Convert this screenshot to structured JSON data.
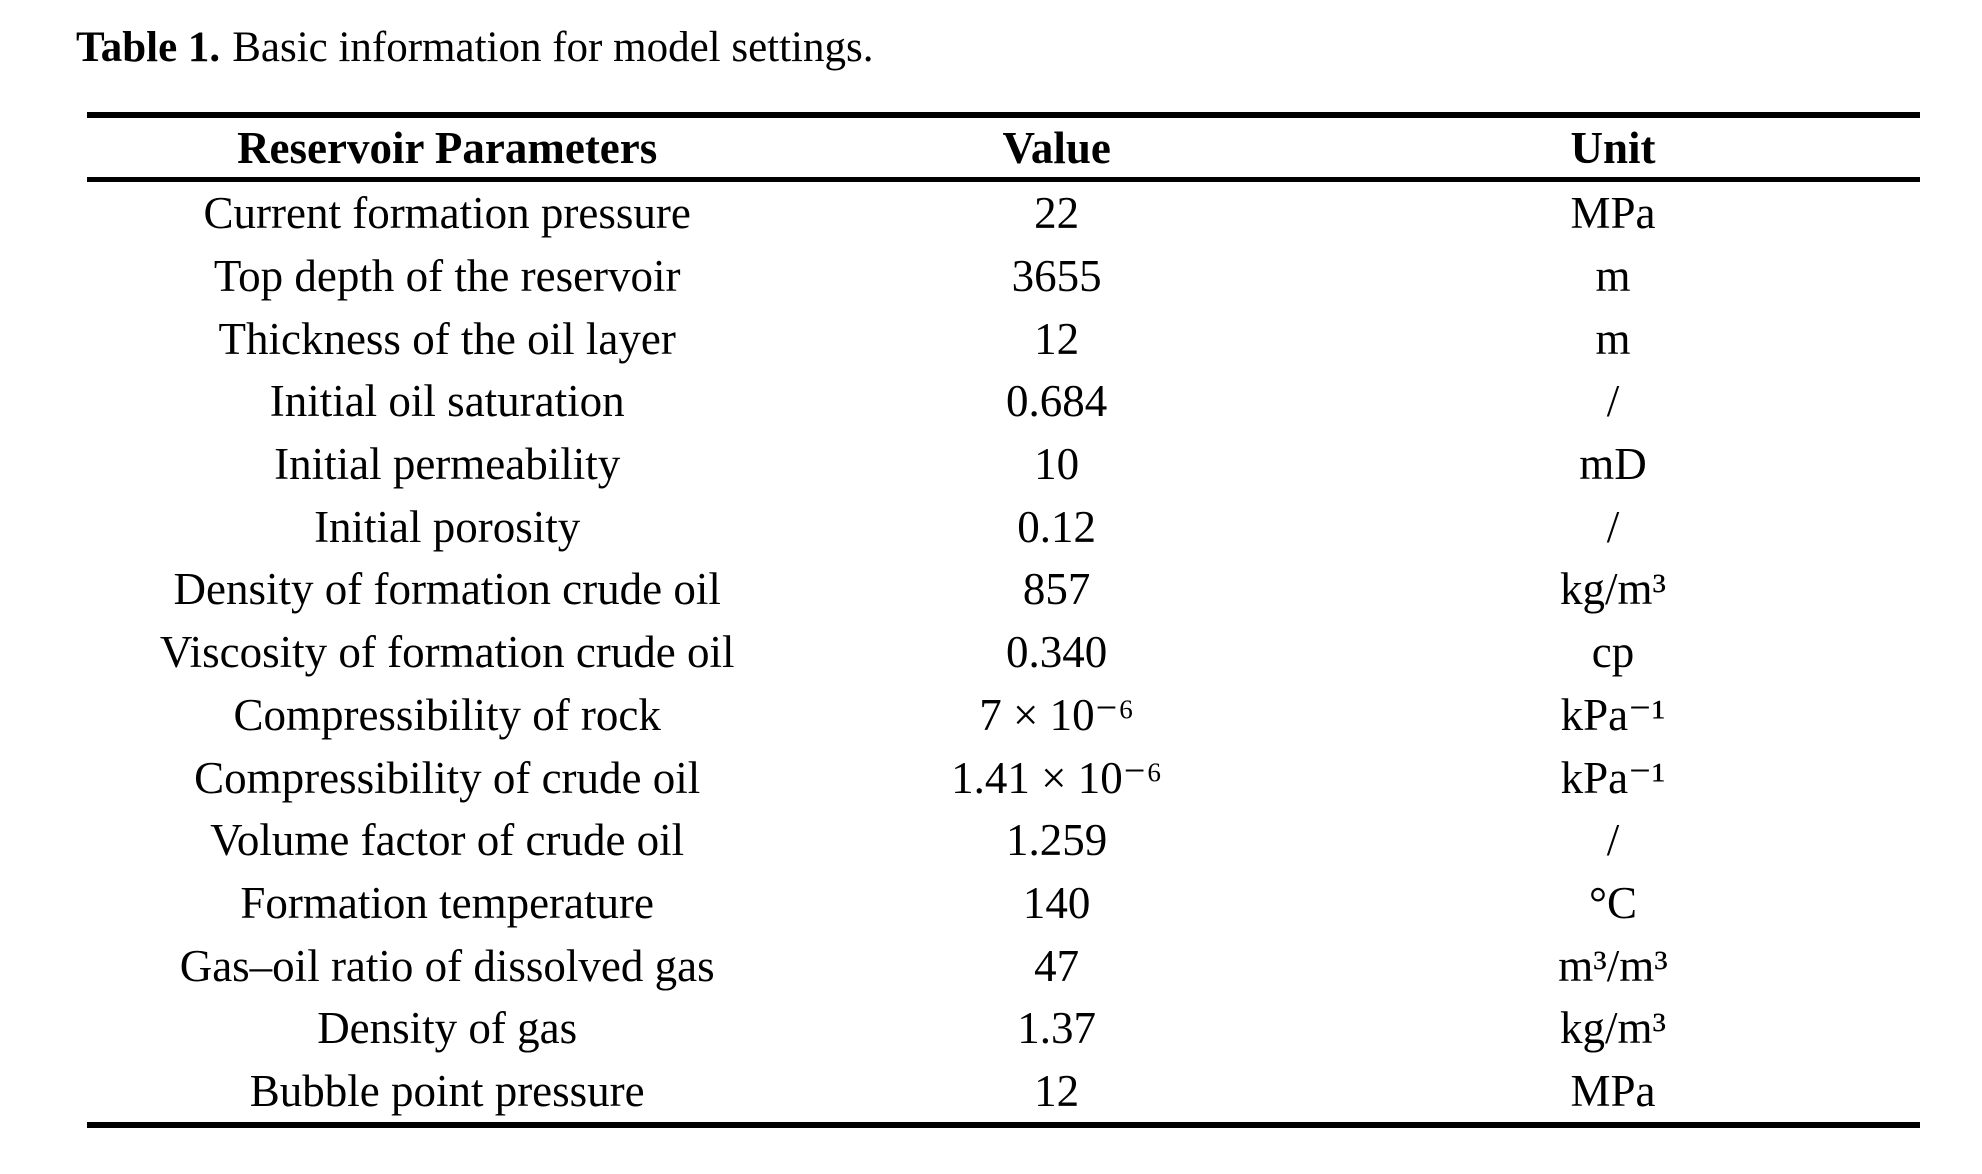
{
  "theme": {
    "text_color": "#000000",
    "background_color": "#ffffff"
  },
  "caption": {
    "label": "Table 1.",
    "text": "Basic information for model settings."
  },
  "table": {
    "columns": [
      "Reservoir Parameters",
      "Value",
      "Unit"
    ],
    "rows": [
      {
        "parameter": "Current formation pressure",
        "value": "22",
        "unit": "MPa"
      },
      {
        "parameter": "Top depth of the reservoir",
        "value": "3655",
        "unit": "m"
      },
      {
        "parameter": "Thickness of the oil layer",
        "value": "12",
        "unit": "m"
      },
      {
        "parameter": "Initial oil saturation",
        "value": "0.684",
        "unit": "/"
      },
      {
        "parameter": "Initial permeability",
        "value": "10",
        "unit": "mD"
      },
      {
        "parameter": "Initial porosity",
        "value": "0.12",
        "unit": "/"
      },
      {
        "parameter": "Density of formation crude oil",
        "value": "857",
        "unit": "kg/m³"
      },
      {
        "parameter": "Viscosity of formation crude oil",
        "value": "0.340",
        "unit": "cp"
      },
      {
        "parameter": "Compressibility of rock",
        "value": "7 × 10⁻⁶",
        "unit": "kPa⁻¹"
      },
      {
        "parameter": "Compressibility of crude oil",
        "value": "1.41 × 10⁻⁶",
        "unit": "kPa⁻¹"
      },
      {
        "parameter": "Volume factor of crude oil",
        "value": "1.259",
        "unit": "/"
      },
      {
        "parameter": "Formation temperature",
        "value": "140",
        "unit": "°C"
      },
      {
        "parameter": "Gas–oil ratio of dissolved gas",
        "value": "47",
        "unit": "m³/m³"
      },
      {
        "parameter": "Density of gas",
        "value": "1.37",
        "unit": "kg/m³"
      },
      {
        "parameter": "Bubble point pressure",
        "value": "12",
        "unit": "MPa"
      }
    ]
  }
}
